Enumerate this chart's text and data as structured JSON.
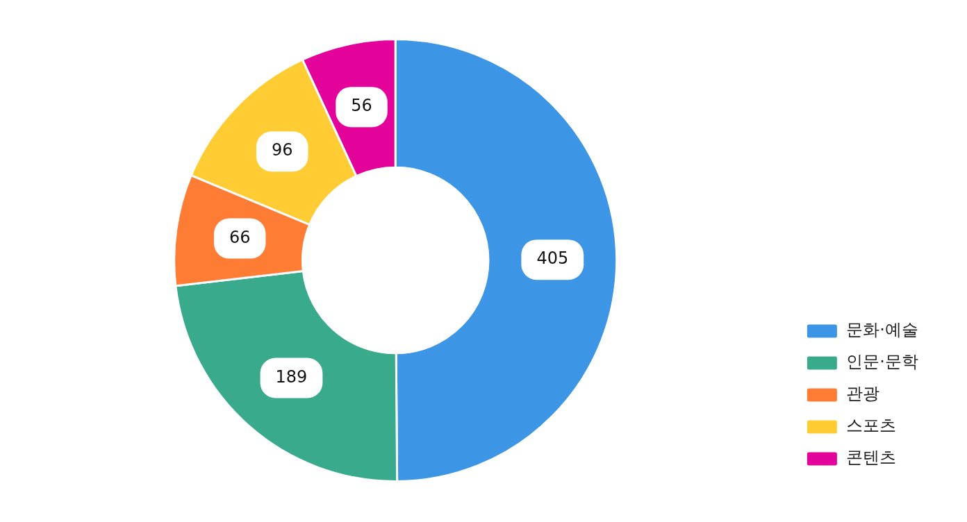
{
  "chart_data": {
    "type": "donut",
    "categories": [
      "문화·예술",
      "인문·문학",
      "관광",
      "스포츠",
      "콘텐츠"
    ],
    "values": [
      405,
      189,
      66,
      96,
      56
    ],
    "colors": [
      "#3d95e5",
      "#3aaa8d",
      "#fe7c33",
      "#ffcd33",
      "#e3039b"
    ],
    "data_labels": true,
    "legend": "bottom right"
  }
}
